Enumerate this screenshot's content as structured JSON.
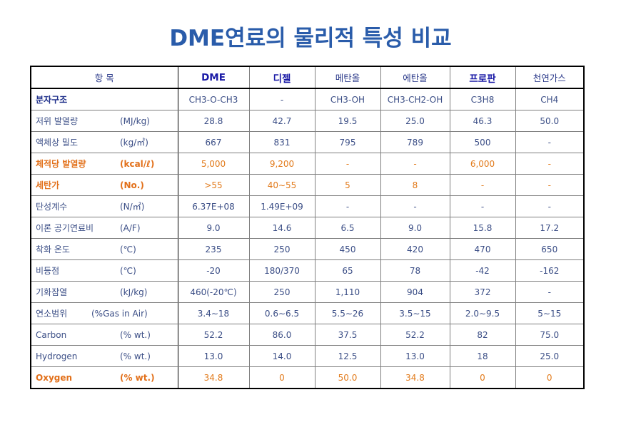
{
  "title": "DME연료의 물리적 특성 비교",
  "header": {
    "item": "항     목",
    "cols": [
      "DME",
      "디젤",
      "메탄올",
      "에탄올",
      "프로판",
      "천연가스"
    ]
  },
  "rows": [
    {
      "label": "분자구조",
      "unit": "",
      "values": [
        "CH3-O-CH3",
        "-",
        "CH3-OH",
        "CH3-CH2-OH",
        "C3H8",
        "CH4"
      ]
    },
    {
      "label": "저위 발열량",
      "unit": "(MJ/kg)",
      "values": [
        "28.8",
        "42.7",
        "19.5",
        "25.0",
        "46.3",
        "50.0"
      ]
    },
    {
      "label": "액체상 밀도",
      "unit": "(kg/㎥)",
      "values": [
        "667",
        "831",
        "795",
        "789",
        "500",
        "-"
      ]
    },
    {
      "label": "체적당 발열량",
      "unit": "(kcal/ℓ)",
      "values": [
        "5,000",
        "9,200",
        "-",
        "-",
        "6,000",
        "-"
      ]
    },
    {
      "label": "세탄가",
      "unit": "(No.)",
      "values": [
        ">55",
        "40∼55",
        "5",
        "8",
        "-",
        "-"
      ]
    },
    {
      "label": "탄성계수",
      "unit": "(N/㎡)",
      "values": [
        "6.37E+08",
        "1.49E+09",
        "-",
        "-",
        "-",
        "-"
      ]
    },
    {
      "label": "이론 공기연료비",
      "unit": "(A/F)",
      "values": [
        "9.0",
        "14.6",
        "6.5",
        "9.0",
        "15.8",
        "17.2"
      ]
    },
    {
      "label": "착화 온도",
      "unit": "(℃)",
      "values": [
        "235",
        "250",
        "450",
        "420",
        "470",
        "650"
      ]
    },
    {
      "label": "비등점",
      "unit": "(℃)",
      "values": [
        "-20",
        "180/370",
        "65",
        "78",
        "-42",
        "-162"
      ]
    },
    {
      "label": "기화잠열",
      "unit": "(kJ/kg)",
      "values": [
        "460(-20℃)",
        "250",
        "1,110",
        "904",
        "372",
        "-"
      ]
    },
    {
      "label": "연소범위",
      "unit": "(%Gas in Air)",
      "values": [
        "3.4∼18",
        "0.6∼6.5",
        "5.5∼26",
        "3.5∼15",
        "2.0∼9.5",
        "5∼15"
      ]
    },
    {
      "label": "Carbon",
      "unit": "(% wt.)",
      "values": [
        "52.2",
        "86.0",
        "37.5",
        "52.2",
        "82",
        "75.0"
      ]
    },
    {
      "label": "Hydrogen",
      "unit": "(% wt.)",
      "values": [
        "13.0",
        "14.0",
        "12.5",
        "13.0",
        "18",
        "25.0"
      ]
    },
    {
      "label": "Oxygen",
      "unit": "(% wt.)",
      "values": [
        "34.8",
        "0",
        "50.0",
        "34.8",
        "0",
        "0"
      ]
    }
  ],
  "colors": {
    "title": "#2a5caa",
    "text": "#3b4e86",
    "highlight": "#e2701a"
  }
}
